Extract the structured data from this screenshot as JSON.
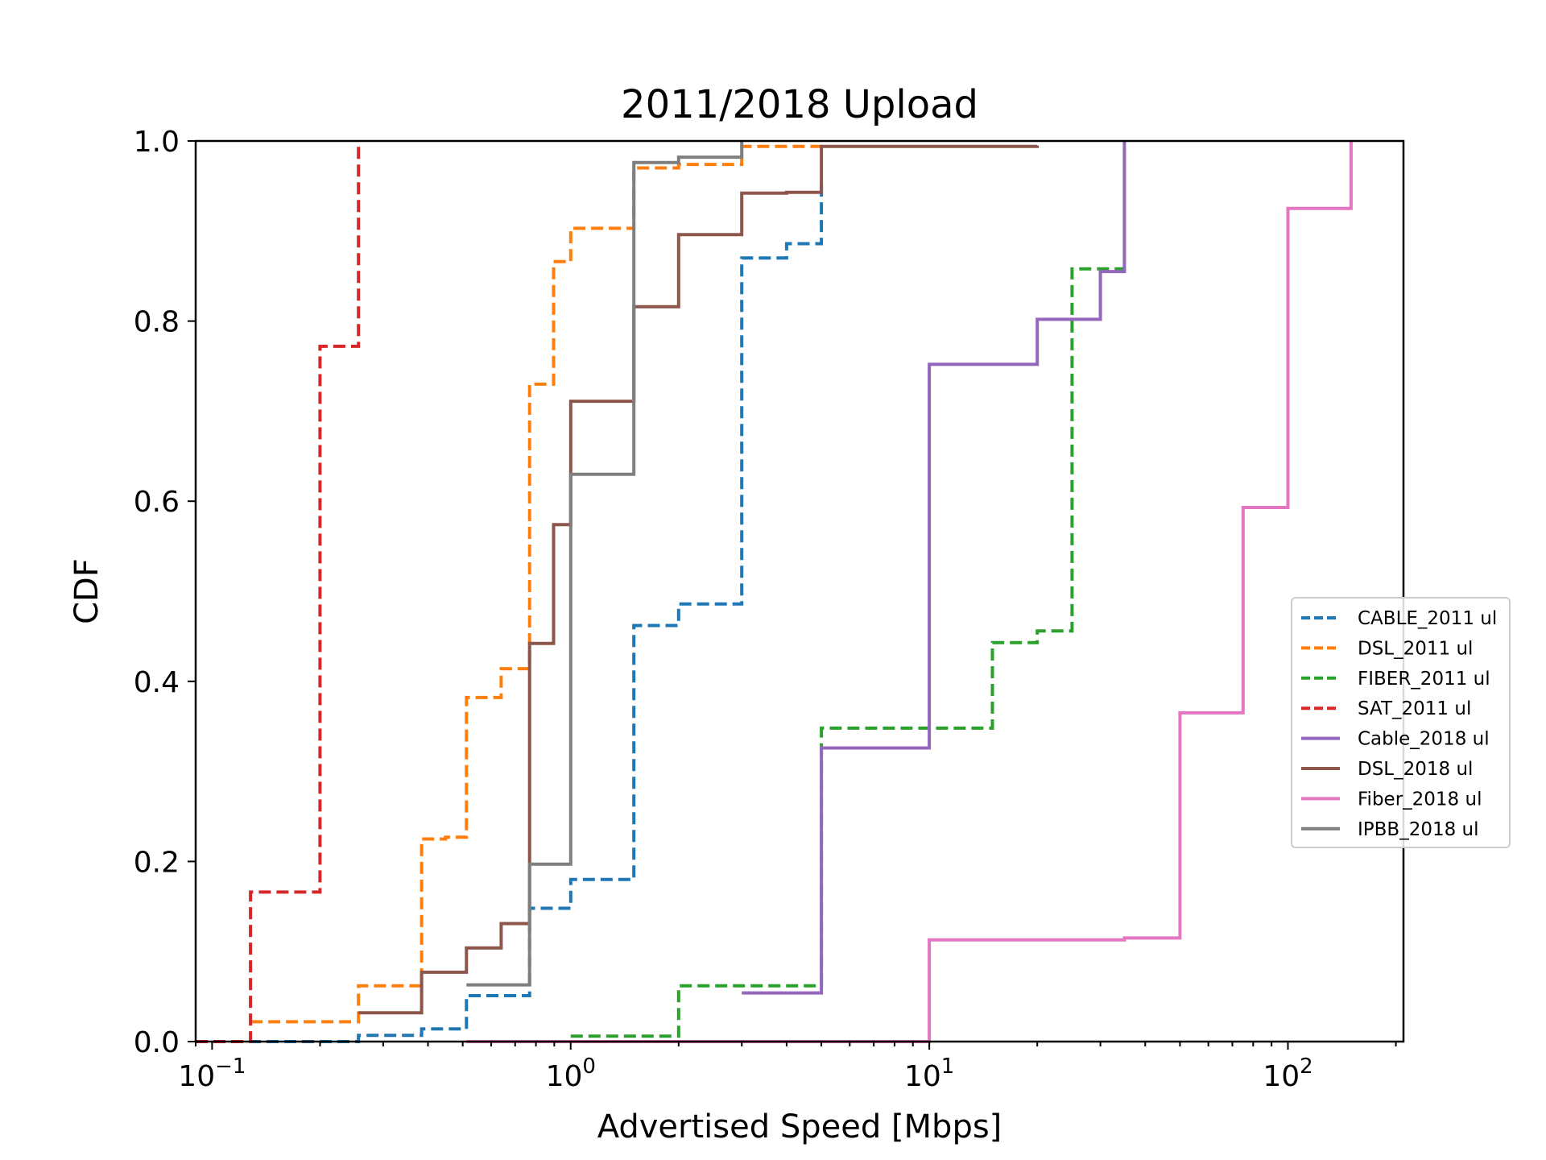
{
  "chart_data": {
    "type": "line",
    "step": "post",
    "title": "2011/2018 Upload",
    "xlabel": "Advertised Speed [Mbps]",
    "ylabel": "CDF",
    "xscale": "log",
    "xlim": [
      0.09,
      210
    ],
    "ylim": [
      0,
      1
    ],
    "xticks": [
      {
        "base": "10",
        "exp": "−1",
        "value": 0.1
      },
      {
        "base": "10",
        "exp": "0",
        "value": 1
      },
      {
        "base": "10",
        "exp": "1",
        "value": 10
      },
      {
        "base": "10",
        "exp": "2",
        "value": 100
      }
    ],
    "yticks": [
      "0.0",
      "0.2",
      "0.4",
      "0.6",
      "0.8",
      "1.0"
    ],
    "grid": false,
    "legend_position": "center-right",
    "series": [
      {
        "name": "CABLE_2011 ul",
        "color": "#1f77b4",
        "dash": true,
        "x": [
          0.09,
          0.256,
          0.384,
          0.512,
          0.768,
          1.0,
          1.5,
          2.0,
          3.0,
          4.0,
          5.0
        ],
        "y": [
          0.0,
          0.007,
          0.014,
          0.051,
          0.148,
          0.18,
          0.462,
          0.486,
          0.87,
          0.886,
          0.956
        ]
      },
      {
        "name": "DSL_2011 ul",
        "color": "#ff7f0e",
        "dash": true,
        "x": [
          0.128,
          0.256,
          0.384,
          0.448,
          0.512,
          0.64,
          0.768,
          0.896,
          1.0,
          1.5,
          2.0,
          3.0,
          5.0
        ],
        "y": [
          0.022,
          0.062,
          0.225,
          0.227,
          0.382,
          0.414,
          0.73,
          0.866,
          0.903,
          0.97,
          0.974,
          0.994,
          0.996
        ]
      },
      {
        "name": "FIBER_2011 ul",
        "color": "#2ca02c",
        "dash": true,
        "x": [
          1.0,
          2.0,
          5.0,
          15.0,
          20.0,
          25.0,
          35.0
        ],
        "y": [
          0.006,
          0.062,
          0.348,
          0.443,
          0.456,
          0.858,
          0.862
        ]
      },
      {
        "name": "SAT_2011 ul",
        "color": "#d62728",
        "dash": true,
        "x": [
          0.09,
          0.128,
          0.2,
          0.256
        ],
        "y": [
          0.0,
          0.166,
          0.772,
          1.0
        ]
      },
      {
        "name": "Cable_2018 ul",
        "color": "#9467bd",
        "dash": false,
        "x": [
          3.0,
          5.0,
          10.0,
          20.0,
          30.0,
          35.0
        ],
        "y": [
          0.054,
          0.326,
          0.752,
          0.802,
          0.855,
          1.0
        ]
      },
      {
        "name": "DSL_2018 ul",
        "color": "#8c564b",
        "dash": false,
        "x": [
          0.256,
          0.384,
          0.512,
          0.64,
          0.768,
          0.896,
          1.0,
          1.5,
          2.0,
          3.0,
          4.0,
          5.0,
          20.0
        ],
        "y": [
          0.032,
          0.077,
          0.104,
          0.131,
          0.442,
          0.574,
          0.711,
          0.816,
          0.896,
          0.942,
          0.943,
          0.994,
          0.995
        ]
      },
      {
        "name": "Fiber_2018 ul",
        "color": "#e377c2",
        "dash": false,
        "x": [
          0.512,
          10.0,
          35.0,
          50.0,
          75.0,
          100.0,
          150.0
        ],
        "y": [
          0.0,
          0.113,
          0.115,
          0.365,
          0.593,
          0.925,
          1.0
        ]
      },
      {
        "name": "IPBB_2018 ul",
        "color": "#7f7f7f",
        "dash": false,
        "x": [
          0.512,
          0.768,
          1.0,
          1.5,
          2.0,
          3.0
        ],
        "y": [
          0.063,
          0.197,
          0.63,
          0.976,
          0.982,
          1.0
        ]
      }
    ]
  }
}
